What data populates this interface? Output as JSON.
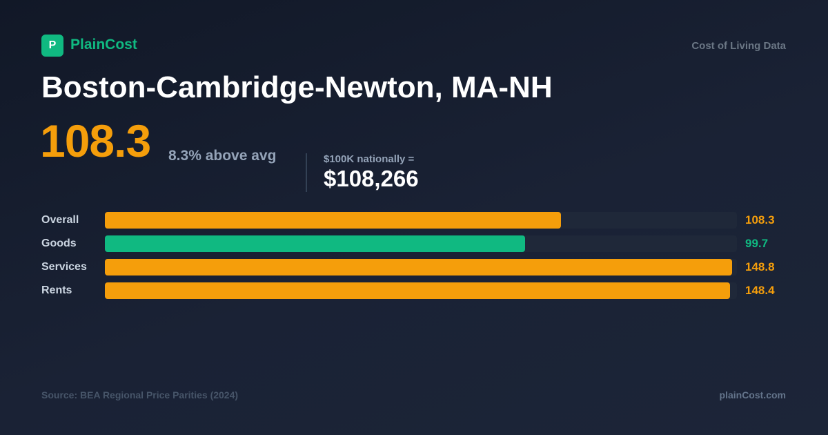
{
  "header": {
    "logo_letter": "P",
    "brand": "PlainCost",
    "tagline": "Cost of Living Data"
  },
  "title": "Boston-Cambridge-Newton, MA-NH",
  "summary": {
    "index": "108.3",
    "comparison": "8.3% above avg",
    "equivalent_label": "$100K nationally =",
    "equivalent_value": "$108,266"
  },
  "chart_data": {
    "type": "bar",
    "orientation": "horizontal",
    "categories": [
      "Overall",
      "Goods",
      "Services",
      "Rents"
    ],
    "values": [
      108.3,
      99.7,
      148.8,
      148.4
    ],
    "colors": [
      "#f59e0b",
      "#10b981",
      "#f59e0b",
      "#f59e0b"
    ],
    "xlim": [
      0,
      150
    ]
  },
  "footer": {
    "source": "Source: BEA Regional Price Parities (2024)",
    "site": "plainCost.com"
  }
}
